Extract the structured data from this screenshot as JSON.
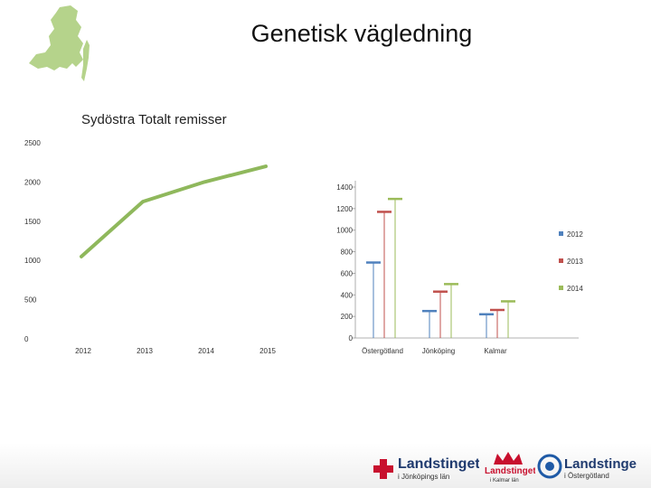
{
  "slide": {
    "title": "Genetisk vägledning",
    "subtitle": "Sydöstra Totalt remisser"
  },
  "logos": [
    {
      "name": "Landstinget",
      "sub": "i Jönköpings län",
      "icon": "red-cross-logo"
    },
    {
      "name": "Landstinget",
      "sub": "i Kalmar län",
      "icon": "red-crown-logo"
    },
    {
      "name": "Landstinget",
      "sub": "i Östergötland",
      "icon": "blue-circle-logo"
    }
  ],
  "colors": {
    "line": "#8fb85c",
    "map": "#b5d38b",
    "s2012": "#4f81bd",
    "s2013": "#c0504d",
    "s2014": "#9bbb59"
  },
  "chart_data": [
    {
      "type": "line",
      "title": "",
      "x": [
        "2012",
        "2013",
        "2014",
        "2015"
      ],
      "series": [
        {
          "values": [
            1050,
            1750,
            2000,
            2200
          ]
        }
      ],
      "ylim": [
        0,
        2500
      ],
      "yticks": [
        0,
        500,
        1000,
        1500,
        2000,
        2500
      ],
      "grid": false,
      "legend": "none"
    },
    {
      "type": "bar",
      "title": "",
      "categories": [
        "Östergötland",
        "Jönköping",
        "Kalmar"
      ],
      "series": [
        {
          "name": "2012",
          "values": [
            700,
            250,
            220
          ]
        },
        {
          "name": "2013",
          "values": [
            1170,
            430,
            260
          ]
        },
        {
          "name": "2014",
          "values": [
            1290,
            500,
            340
          ]
        }
      ],
      "ylim": [
        0,
        1400
      ],
      "yticks": [
        0,
        200,
        400,
        600,
        800,
        1000,
        1200,
        1400
      ],
      "grid": false,
      "legend": "right"
    }
  ]
}
